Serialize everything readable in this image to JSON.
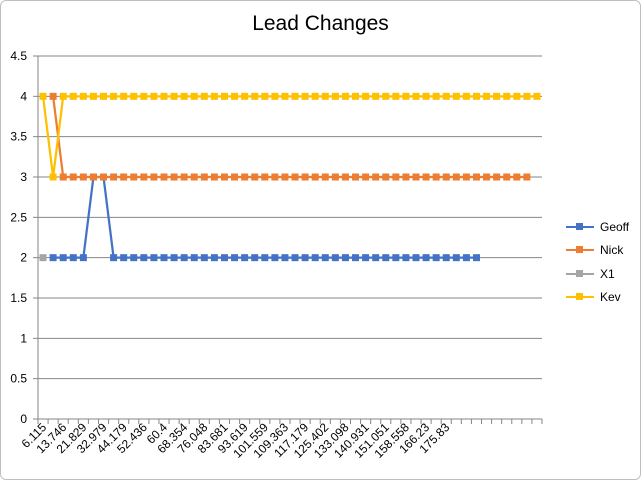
{
  "chart_data": {
    "type": "line",
    "title": "Lead Changes",
    "ylim": [
      0,
      4.5
    ],
    "y_ticks": [
      "0",
      "0.5",
      "1",
      "1.5",
      "2",
      "2.5",
      "3",
      "3.5",
      "4",
      "4.5"
    ],
    "x_tick_labels": [
      "6.115",
      "13.746",
      "21.829",
      "32.979",
      "44.179",
      "52.436",
      "60.4",
      "68.354",
      "76.048",
      "83.681",
      "93.619",
      "101.559",
      "109.363",
      "117.179",
      "125.402",
      "133.098",
      "140.931",
      "151.051",
      "158.558",
      "166.23",
      "175.83"
    ],
    "grid": "horizontal",
    "legend": "right",
    "series": [
      {
        "name": "Geoff",
        "color": "#4472C4",
        "start": 1,
        "values": [
          2,
          2,
          2,
          2,
          3,
          3,
          2,
          2,
          2,
          2,
          2,
          2,
          2,
          2,
          2,
          2,
          2,
          2,
          2,
          2,
          2,
          2,
          2,
          2,
          2,
          2,
          2,
          2,
          2,
          2,
          2,
          2,
          2,
          2,
          2,
          2,
          2,
          2,
          2,
          2,
          2,
          2,
          2
        ]
      },
      {
        "name": "Nick",
        "color": "#ED7D31",
        "start": 1,
        "values": [
          4,
          3,
          3,
          3,
          3,
          3,
          3,
          3,
          3,
          3,
          3,
          3,
          3,
          3,
          3,
          3,
          3,
          3,
          3,
          3,
          3,
          3,
          3,
          3,
          3,
          3,
          3,
          3,
          3,
          3,
          3,
          3,
          3,
          3,
          3,
          3,
          3,
          3,
          3,
          3,
          3,
          3,
          3,
          3,
          3,
          3,
          3,
          3
        ]
      },
      {
        "name": "X1",
        "color": "#A5A5A5",
        "start": 0,
        "values": [
          2
        ]
      },
      {
        "name": "Kev",
        "color": "#FFC000",
        "start": 0,
        "values": [
          4,
          3,
          4,
          4,
          4,
          4,
          4,
          4,
          4,
          4,
          4,
          4,
          4,
          4,
          4,
          4,
          4,
          4,
          4,
          4,
          4,
          4,
          4,
          4,
          4,
          4,
          4,
          4,
          4,
          4,
          4,
          4,
          4,
          4,
          4,
          4,
          4,
          4,
          4,
          4,
          4,
          4,
          4,
          4,
          4,
          4,
          4,
          4,
          4,
          4
        ]
      }
    ]
  }
}
